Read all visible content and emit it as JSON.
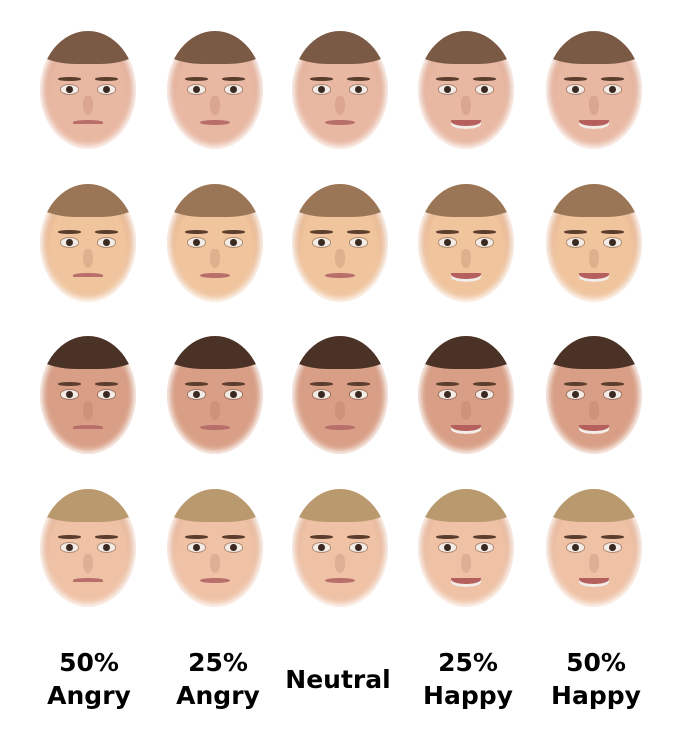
{
  "columns": [
    {
      "line1": "50%",
      "line2": "Angry"
    },
    {
      "line1": "25%",
      "line2": "Angry"
    },
    {
      "line1": "",
      "line2": "Neutral"
    },
    {
      "line1": "25%",
      "line2": "Happy"
    },
    {
      "line1": "50%",
      "line2": "Happy"
    }
  ],
  "rows": [
    {
      "skin": "#e9b8a3",
      "hair": "#7a5a45",
      "expressions": [
        "angry-50",
        "angry-25",
        "neutral",
        "happy-25",
        "happy-50"
      ]
    },
    {
      "skin": "#f0c49d",
      "hair": "#9a7556",
      "expressions": [
        "angry-50",
        "angry-25",
        "neutral",
        "happy-25",
        "happy-50"
      ]
    },
    {
      "skin": "#d99f86",
      "hair": "#4a3226",
      "expressions": [
        "angry-50",
        "angry-25",
        "neutral",
        "happy-25",
        "happy-50"
      ]
    },
    {
      "skin": "#efc2a6",
      "hair": "#b89a6e",
      "expressions": [
        "angry-50",
        "angry-25",
        "neutral",
        "happy-25",
        "happy-50"
      ]
    }
  ]
}
